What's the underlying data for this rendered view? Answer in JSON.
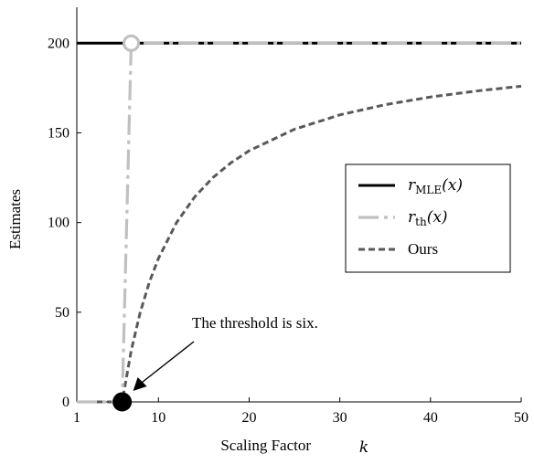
{
  "chart_data": {
    "type": "line",
    "xlabel": "Scaling Factor",
    "xlabel_var": "k",
    "ylabel": "Estimates",
    "xlim": [
      1,
      50
    ],
    "ylim": [
      0,
      220
    ],
    "xticks": [
      1,
      10,
      20,
      30,
      40,
      50
    ],
    "yticks": [
      0,
      50,
      100,
      150,
      200
    ],
    "grid": false,
    "legend_position": "center-right",
    "series": [
      {
        "name": "r_MLE(x)",
        "label_main": "r",
        "label_sub": "MLE",
        "label_arg": "(x)",
        "style": "solid",
        "color": "#000000",
        "x": [
          1,
          50
        ],
        "y": [
          200,
          200
        ]
      },
      {
        "name": "r_th(x)",
        "label_main": "r",
        "label_sub": "th",
        "label_arg": "(x)",
        "style": "long-dash-dot",
        "color": "#c0c0c0",
        "x": [
          1,
          6,
          7,
          50
        ],
        "y": [
          0,
          0,
          200,
          200
        ]
      },
      {
        "name": "Ours",
        "label_main": "Ours",
        "style": "short-dash",
        "color": "#595959",
        "x": [
          1,
          6,
          7,
          8,
          9,
          10,
          12,
          14,
          16,
          18,
          20,
          25,
          30,
          35,
          40,
          45,
          50
        ],
        "y": [
          0,
          0,
          28.6,
          50,
          66.7,
          80,
          100,
          114.3,
          125,
          133.3,
          140,
          152,
          160,
          165.7,
          170,
          173.3,
          176
        ]
      }
    ],
    "markers": [
      {
        "name": "threshold-point",
        "x": 6,
        "y": 0,
        "fill": "#000000",
        "stroke": "#000000"
      },
      {
        "name": "open-point",
        "x": 7,
        "y": 200,
        "fill": "#ffffff",
        "stroke": "#bfbfbf"
      }
    ],
    "annotation": {
      "text": "The threshold is six.",
      "points_to": {
        "x": 6,
        "y": 0
      }
    }
  }
}
